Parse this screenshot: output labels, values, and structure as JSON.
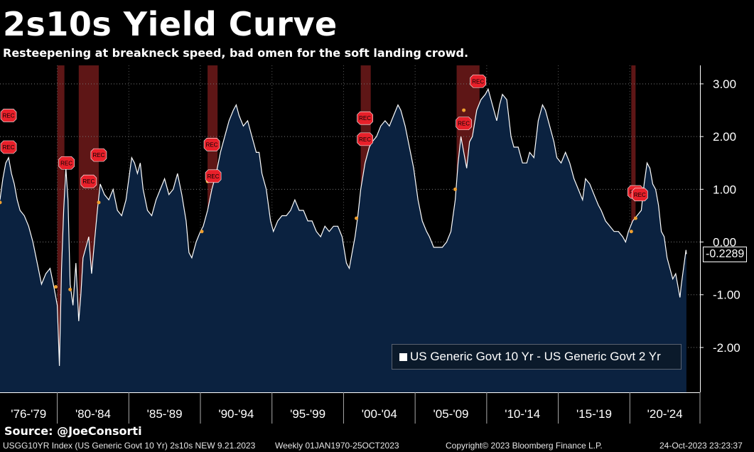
{
  "header": {
    "title": "2s10s Yield Curve",
    "subtitle": "Resteepening at breakneck speed, bad omen for the soft landing crowd."
  },
  "source": "Source: @JoeConsorti",
  "footer": {
    "index_info": "USGG10YR Index (US Generic Govt 10 Yr) 2s10s NEW 9.21.2023",
    "period": "Weekly 01JAN1970-25OCT2023",
    "copyright": "Copyright© 2023 Bloomberg Finance L.P.",
    "timestamp": "24-Oct-2023 23:23:37"
  },
  "legend": {
    "label": "US Generic Govt 10 Yr - US Generic Govt 2 Yr"
  },
  "last_value_label": "-0.2289",
  "recession_marker_label": "REC",
  "colors": {
    "background": "#000000",
    "area_fill": "#0b2240",
    "line": "#ffffff",
    "recession_band": "#6e1a1a",
    "rec_marker": "#e8202a",
    "point_marker": "#f0a030"
  },
  "chart_data": {
    "type": "area",
    "x_unit": "year",
    "xlim": [
      1976.0,
      2024.9
    ],
    "ylim": [
      -2.85,
      3.35
    ],
    "yticks": [
      {
        "value": 3,
        "label": "3.00"
      },
      {
        "value": 2,
        "label": "2.00"
      },
      {
        "value": 1,
        "label": "1.00"
      },
      {
        "value": 0,
        "label": "0.00"
      },
      {
        "value": -1,
        "label": "-1.00"
      },
      {
        "value": -2,
        "label": "-2.00"
      }
    ],
    "xticks": [
      {
        "label": "'76-'79",
        "start": 1976,
        "end": 1980
      },
      {
        "label": "'80-'84",
        "start": 1980,
        "end": 1985
      },
      {
        "label": "'85-'89",
        "start": 1985,
        "end": 1990
      },
      {
        "label": "'90-'94",
        "start": 1990,
        "end": 1995
      },
      {
        "label": "'95-'99",
        "start": 1995,
        "end": 2000
      },
      {
        "label": "'00-'04",
        "start": 2000,
        "end": 2005
      },
      {
        "label": "'05-'09",
        "start": 2005,
        "end": 2010
      },
      {
        "label": "'10-'14",
        "start": 2010,
        "end": 2015
      },
      {
        "label": "'15-'19",
        "start": 2015,
        "end": 2020
      },
      {
        "label": "'20-'24",
        "start": 2020,
        "end": 2025
      }
    ],
    "grid": "horizontal dotted",
    "series": [
      {
        "name": "US Generic Govt 10 Yr - US Generic Govt 2 Yr",
        "last_value": -0.2289,
        "points": [
          [
            1976.0,
            0.8
          ],
          [
            1976.2,
            1.2
          ],
          [
            1976.4,
            1.5
          ],
          [
            1976.6,
            1.6
          ],
          [
            1976.8,
            1.3
          ],
          [
            1977.0,
            1.1
          ],
          [
            1977.2,
            0.8
          ],
          [
            1977.4,
            0.6
          ],
          [
            1977.7,
            0.5
          ],
          [
            1978.0,
            0.3
          ],
          [
            1978.3,
            0.0
          ],
          [
            1978.6,
            -0.4
          ],
          [
            1978.9,
            -0.8
          ],
          [
            1979.2,
            -0.6
          ],
          [
            1979.5,
            -0.5
          ],
          [
            1979.8,
            -0.9
          ],
          [
            1980.0,
            -1.2
          ],
          [
            1980.15,
            -2.35
          ],
          [
            1980.3,
            -0.5
          ],
          [
            1980.45,
            0.6
          ],
          [
            1980.6,
            1.4
          ],
          [
            1980.75,
            0.8
          ],
          [
            1980.9,
            -0.8
          ],
          [
            1981.1,
            -1.2
          ],
          [
            1981.3,
            -0.4
          ],
          [
            1981.5,
            -1.5
          ],
          [
            1981.65,
            -1.0
          ],
          [
            1981.8,
            -0.3
          ],
          [
            1982.0,
            -0.1
          ],
          [
            1982.2,
            0.1
          ],
          [
            1982.4,
            -0.6
          ],
          [
            1982.6,
            0.0
          ],
          [
            1982.8,
            0.6
          ],
          [
            1983.0,
            1.1
          ],
          [
            1983.3,
            0.9
          ],
          [
            1983.6,
            0.8
          ],
          [
            1983.9,
            1.0
          ],
          [
            1984.2,
            0.6
          ],
          [
            1984.5,
            0.5
          ],
          [
            1984.8,
            0.8
          ],
          [
            1985.0,
            1.2
          ],
          [
            1985.2,
            1.6
          ],
          [
            1985.4,
            1.5
          ],
          [
            1985.6,
            1.3
          ],
          [
            1985.8,
            1.5
          ],
          [
            1986.0,
            1.0
          ],
          [
            1986.3,
            0.6
          ],
          [
            1986.6,
            0.5
          ],
          [
            1986.9,
            0.8
          ],
          [
            1987.2,
            1.0
          ],
          [
            1987.5,
            1.2
          ],
          [
            1987.8,
            0.9
          ],
          [
            1988.1,
            1.0
          ],
          [
            1988.4,
            1.3
          ],
          [
            1988.7,
            0.9
          ],
          [
            1989.0,
            0.4
          ],
          [
            1989.2,
            -0.2
          ],
          [
            1989.4,
            -0.3
          ],
          [
            1989.7,
            0.0
          ],
          [
            1990.0,
            0.2
          ],
          [
            1990.2,
            0.3
          ],
          [
            1990.5,
            0.6
          ],
          [
            1990.8,
            1.0
          ],
          [
            1991.1,
            1.3
          ],
          [
            1991.4,
            1.7
          ],
          [
            1991.7,
            2.0
          ],
          [
            1992.0,
            2.3
          ],
          [
            1992.3,
            2.5
          ],
          [
            1992.5,
            2.6
          ],
          [
            1992.7,
            2.4
          ],
          [
            1993.0,
            2.2
          ],
          [
            1993.3,
            2.3
          ],
          [
            1993.6,
            2.0
          ],
          [
            1993.9,
            1.7
          ],
          [
            1994.1,
            1.7
          ],
          [
            1994.3,
            1.3
          ],
          [
            1994.6,
            1.0
          ],
          [
            1994.9,
            0.4
          ],
          [
            1995.1,
            0.2
          ],
          [
            1995.4,
            0.4
          ],
          [
            1995.7,
            0.5
          ],
          [
            1996.0,
            0.5
          ],
          [
            1996.3,
            0.6
          ],
          [
            1996.6,
            0.8
          ],
          [
            1996.9,
            0.6
          ],
          [
            1997.2,
            0.6
          ],
          [
            1997.5,
            0.4
          ],
          [
            1997.8,
            0.4
          ],
          [
            1998.1,
            0.2
          ],
          [
            1998.4,
            0.1
          ],
          [
            1998.7,
            0.3
          ],
          [
            1999.0,
            0.2
          ],
          [
            1999.3,
            0.3
          ],
          [
            1999.6,
            0.3
          ],
          [
            1999.9,
            0.1
          ],
          [
            2000.2,
            -0.4
          ],
          [
            2000.4,
            -0.5
          ],
          [
            2000.6,
            -0.2
          ],
          [
            2000.8,
            0.1
          ],
          [
            2001.0,
            0.5
          ],
          [
            2001.2,
            1.0
          ],
          [
            2001.5,
            1.5
          ],
          [
            2001.8,
            1.8
          ],
          [
            2002.0,
            1.9
          ],
          [
            2002.3,
            2.0
          ],
          [
            2002.6,
            2.2
          ],
          [
            2002.9,
            2.3
          ],
          [
            2003.2,
            2.2
          ],
          [
            2003.5,
            2.4
          ],
          [
            2003.8,
            2.6
          ],
          [
            2004.0,
            2.5
          ],
          [
            2004.3,
            2.2
          ],
          [
            2004.6,
            1.8
          ],
          [
            2004.9,
            1.4
          ],
          [
            2005.2,
            0.8
          ],
          [
            2005.5,
            0.4
          ],
          [
            2005.8,
            0.2
          ],
          [
            2006.0,
            0.1
          ],
          [
            2006.3,
            -0.1
          ],
          [
            2006.6,
            -0.1
          ],
          [
            2006.9,
            -0.1
          ],
          [
            2007.2,
            0.0
          ],
          [
            2007.5,
            0.2
          ],
          [
            2007.8,
            0.8
          ],
          [
            2008.0,
            1.5
          ],
          [
            2008.2,
            2.0
          ],
          [
            2008.4,
            1.7
          ],
          [
            2008.6,
            1.4
          ],
          [
            2008.8,
            1.9
          ],
          [
            2009.0,
            2.0
          ],
          [
            2009.3,
            2.5
          ],
          [
            2009.6,
            2.7
          ],
          [
            2009.9,
            2.8
          ],
          [
            2010.1,
            2.9
          ],
          [
            2010.4,
            2.6
          ],
          [
            2010.7,
            2.3
          ],
          [
            2010.9,
            2.6
          ],
          [
            2011.1,
            2.8
          ],
          [
            2011.4,
            2.7
          ],
          [
            2011.7,
            2.0
          ],
          [
            2011.9,
            1.8
          ],
          [
            2012.2,
            1.8
          ],
          [
            2012.5,
            1.5
          ],
          [
            2012.8,
            1.5
          ],
          [
            2013.0,
            1.7
          ],
          [
            2013.3,
            1.6
          ],
          [
            2013.6,
            2.3
          ],
          [
            2013.9,
            2.6
          ],
          [
            2014.1,
            2.5
          ],
          [
            2014.4,
            2.2
          ],
          [
            2014.7,
            1.9
          ],
          [
            2014.9,
            1.6
          ],
          [
            2015.2,
            1.5
          ],
          [
            2015.5,
            1.7
          ],
          [
            2015.8,
            1.5
          ],
          [
            2016.1,
            1.2
          ],
          [
            2016.4,
            1.0
          ],
          [
            2016.7,
            0.8
          ],
          [
            2016.9,
            1.2
          ],
          [
            2017.2,
            1.1
          ],
          [
            2017.5,
            0.9
          ],
          [
            2017.8,
            0.7
          ],
          [
            2018.0,
            0.6
          ],
          [
            2018.3,
            0.4
          ],
          [
            2018.6,
            0.3
          ],
          [
            2018.9,
            0.2
          ],
          [
            2019.2,
            0.2
          ],
          [
            2019.5,
            0.1
          ],
          [
            2019.7,
            0.0
          ],
          [
            2019.9,
            0.2
          ],
          [
            2020.2,
            0.4
          ],
          [
            2020.5,
            0.5
          ],
          [
            2020.8,
            0.6
          ],
          [
            2021.0,
            1.1
          ],
          [
            2021.2,
            1.5
          ],
          [
            2021.4,
            1.4
          ],
          [
            2021.6,
            1.1
          ],
          [
            2021.8,
            1.0
          ],
          [
            2022.0,
            0.7
          ],
          [
            2022.2,
            0.2
          ],
          [
            2022.4,
            0.1
          ],
          [
            2022.6,
            -0.3
          ],
          [
            2022.8,
            -0.5
          ],
          [
            2023.0,
            -0.7
          ],
          [
            2023.2,
            -0.6
          ],
          [
            2023.4,
            -0.9
          ],
          [
            2023.5,
            -1.05
          ],
          [
            2023.6,
            -0.8
          ],
          [
            2023.75,
            -0.5
          ],
          [
            2023.85,
            -0.3
          ],
          [
            2023.92,
            -0.15
          ],
          [
            2023.95,
            -0.2289
          ]
        ]
      }
    ],
    "recession_bands": [
      [
        1980.0,
        1980.5
      ],
      [
        1981.5,
        1982.9
      ],
      [
        1990.5,
        1991.2
      ],
      [
        2001.2,
        2001.9
      ],
      [
        2007.9,
        2009.5
      ],
      [
        2020.1,
        2020.4
      ]
    ],
    "rec_markers": [
      {
        "year": 1976.2,
        "value": 2.4
      },
      {
        "year": 1976.2,
        "value": 1.8
      },
      {
        "year": 1980.25,
        "value": 1.5
      },
      {
        "year": 1981.8,
        "value": 1.15
      },
      {
        "year": 1982.5,
        "value": 1.65
      },
      {
        "year": 1990.4,
        "value": 1.85
      },
      {
        "year": 1990.5,
        "value": 1.25
      },
      {
        "year": 2001.1,
        "value": 2.35
      },
      {
        "year": 2001.1,
        "value": 1.95
      },
      {
        "year": 2008.0,
        "value": 2.25
      },
      {
        "year": 2009.0,
        "value": 3.05
      },
      {
        "year": 2020.0,
        "value": 0.95
      },
      {
        "year": 2020.3,
        "value": 0.9
      }
    ],
    "event_points": [
      {
        "year": 1976.0,
        "value": 0.75
      },
      {
        "year": 1979.9,
        "value": -0.85
      },
      {
        "year": 1980.9,
        "value": -0.9
      },
      {
        "year": 1982.9,
        "value": 0.75
      },
      {
        "year": 1990.1,
        "value": 0.2
      },
      {
        "year": 1990.5,
        "value": 1.15
      },
      {
        "year": 2000.9,
        "value": 0.45
      },
      {
        "year": 2007.8,
        "value": 1.0
      },
      {
        "year": 2008.4,
        "value": 2.5
      },
      {
        "year": 2020.1,
        "value": 0.2
      },
      {
        "year": 2020.4,
        "value": 0.45
      }
    ]
  }
}
